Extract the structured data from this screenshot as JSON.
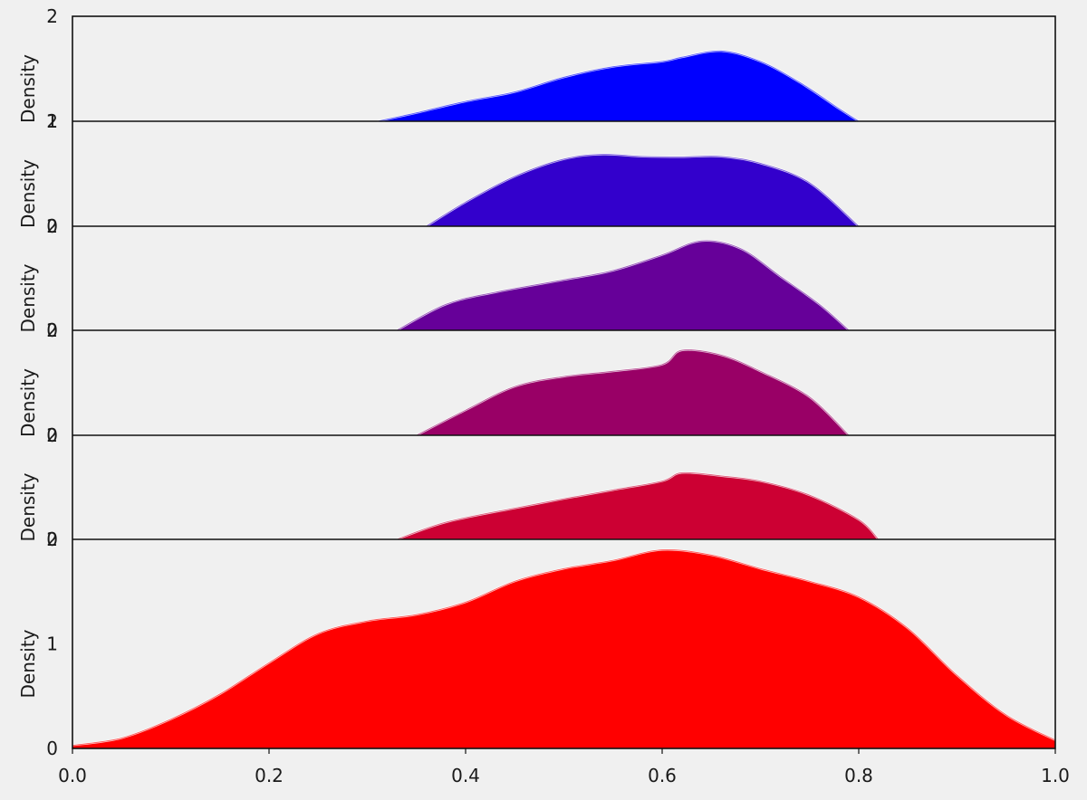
{
  "chart_data": {
    "type": "area",
    "title": "",
    "xlabel": "",
    "ylabel": "Density",
    "xlim": [
      0.0,
      1.0
    ],
    "x_ticks": [
      "0.0",
      "0.2",
      "0.4",
      "0.6",
      "0.8",
      "1.0"
    ],
    "grid": false,
    "stacked_panels": true,
    "series": [
      {
        "color": "#0000ff",
        "ylim": [
          1,
          2
        ],
        "y_ticks": [
          1,
          2
        ],
        "points": [
          [
            0.31,
            1.0
          ],
          [
            0.35,
            1.08
          ],
          [
            0.4,
            1.19
          ],
          [
            0.45,
            1.28
          ],
          [
            0.5,
            1.42
          ],
          [
            0.55,
            1.52
          ],
          [
            0.6,
            1.57
          ],
          [
            0.62,
            1.61
          ],
          [
            0.66,
            1.67
          ],
          [
            0.7,
            1.57
          ],
          [
            0.74,
            1.37
          ],
          [
            0.78,
            1.12
          ],
          [
            0.8,
            1.0
          ]
        ]
      },
      {
        "color": "#3300cc",
        "ylim": [
          0,
          2
        ],
        "y_ticks": [
          0,
          2
        ],
        "points": [
          [
            0.36,
            0.0
          ],
          [
            0.4,
            0.46
          ],
          [
            0.45,
            0.95
          ],
          [
            0.5,
            1.28
          ],
          [
            0.54,
            1.37
          ],
          [
            0.58,
            1.33
          ],
          [
            0.62,
            1.32
          ],
          [
            0.66,
            1.33
          ],
          [
            0.7,
            1.2
          ],
          [
            0.75,
            0.83
          ],
          [
            0.8,
            0.0
          ]
        ]
      },
      {
        "color": "#660099",
        "ylim": [
          0,
          2
        ],
        "y_ticks": [
          0,
          2
        ],
        "points": [
          [
            0.33,
            0.0
          ],
          [
            0.38,
            0.5
          ],
          [
            0.43,
            0.73
          ],
          [
            0.5,
            0.97
          ],
          [
            0.55,
            1.15
          ],
          [
            0.6,
            1.45
          ],
          [
            0.64,
            1.72
          ],
          [
            0.68,
            1.57
          ],
          [
            0.72,
            1.04
          ],
          [
            0.76,
            0.5
          ],
          [
            0.79,
            0.0
          ]
        ]
      },
      {
        "color": "#990066",
        "ylim": [
          0,
          2
        ],
        "y_ticks": [
          0,
          2
        ],
        "points": [
          [
            0.35,
            0.0
          ],
          [
            0.4,
            0.48
          ],
          [
            0.45,
            0.93
          ],
          [
            0.5,
            1.12
          ],
          [
            0.55,
            1.22
          ],
          [
            0.6,
            1.35
          ],
          [
            0.62,
            1.62
          ],
          [
            0.66,
            1.53
          ],
          [
            0.7,
            1.22
          ],
          [
            0.75,
            0.73
          ],
          [
            0.79,
            0.0
          ]
        ]
      },
      {
        "color": "#cc0033",
        "ylim": [
          0,
          2
        ],
        "y_ticks": [
          0,
          2
        ],
        "points": [
          [
            0.33,
            0.0
          ],
          [
            0.38,
            0.33
          ],
          [
            0.45,
            0.6
          ],
          [
            0.5,
            0.78
          ],
          [
            0.55,
            0.95
          ],
          [
            0.6,
            1.12
          ],
          [
            0.62,
            1.28
          ],
          [
            0.66,
            1.22
          ],
          [
            0.7,
            1.12
          ],
          [
            0.75,
            0.85
          ],
          [
            0.8,
            0.38
          ],
          [
            0.82,
            0.0
          ]
        ]
      },
      {
        "color": "#ff0000",
        "ylim": [
          0,
          2
        ],
        "y_ticks": [
          0,
          1,
          2
        ],
        "points": [
          [
            0.0,
            0.03
          ],
          [
            0.05,
            0.1
          ],
          [
            0.1,
            0.28
          ],
          [
            0.15,
            0.52
          ],
          [
            0.2,
            0.82
          ],
          [
            0.25,
            1.1
          ],
          [
            0.3,
            1.22
          ],
          [
            0.35,
            1.28
          ],
          [
            0.4,
            1.4
          ],
          [
            0.45,
            1.6
          ],
          [
            0.5,
            1.72
          ],
          [
            0.55,
            1.8
          ],
          [
            0.6,
            1.9
          ],
          [
            0.65,
            1.85
          ],
          [
            0.7,
            1.72
          ],
          [
            0.75,
            1.6
          ],
          [
            0.8,
            1.45
          ],
          [
            0.85,
            1.15
          ],
          [
            0.9,
            0.7
          ],
          [
            0.95,
            0.32
          ],
          [
            1.0,
            0.08
          ]
        ]
      }
    ]
  }
}
